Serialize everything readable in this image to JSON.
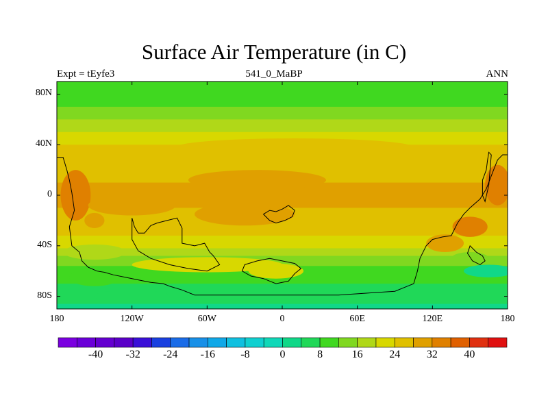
{
  "title": "Surface Air Temperature (in C)",
  "left_label": "Expt = tEyfe3",
  "center_label": "541_0_MaBP",
  "right_label": "ANN",
  "chart_data": {
    "type": "heatmap",
    "variable": "Surface Air Temperature",
    "units": "C",
    "projection": "cylindrical equidistant",
    "x_range_deg": [
      -180,
      180
    ],
    "y_range_deg": [
      -90,
      90
    ],
    "lat_ticks": [
      {
        "lat": 80,
        "label": "80N"
      },
      {
        "lat": 40,
        "label": "40N"
      },
      {
        "lat": 0,
        "label": "0"
      },
      {
        "lat": -40,
        "label": "40S"
      },
      {
        "lat": -80,
        "label": "80S"
      }
    ],
    "lon_ticks": [
      {
        "lon": -180,
        "label": "180"
      },
      {
        "lon": -120,
        "label": "120W"
      },
      {
        "lon": -60,
        "label": "60W"
      },
      {
        "lon": 0,
        "label": "0"
      },
      {
        "lon": 60,
        "label": "60E"
      },
      {
        "lon": 120,
        "label": "120E"
      },
      {
        "lon": 180,
        "label": "180"
      }
    ],
    "zonal_profile": {
      "lat": [
        90,
        80,
        70,
        60,
        50,
        40,
        30,
        20,
        10,
        0,
        -10,
        -20,
        -30,
        -40,
        -50,
        -60,
        -70,
        -80,
        -90
      ],
      "temp_c": [
        8,
        9,
        12,
        16,
        20,
        24,
        26,
        27,
        28,
        28,
        28,
        27,
        25,
        21,
        15,
        10,
        8,
        5,
        3
      ]
    },
    "colorbar": {
      "levels": [
        -44,
        -40,
        -36,
        -32,
        -28,
        -24,
        -20,
        -16,
        -12,
        -8,
        -4,
        0,
        4,
        8,
        12,
        16,
        20,
        24,
        28,
        32,
        36,
        40,
        44
      ],
      "colors": [
        "#7a00e0",
        "#6a00d8",
        "#6400d0",
        "#5a00c8",
        "#3a10d8",
        "#1a40e0",
        "#1a6ce8",
        "#1890e8",
        "#10a8e8",
        "#10c0e0",
        "#10d0d0",
        "#10d8b8",
        "#10d888",
        "#20d858",
        "#40d820",
        "#80d820",
        "#b0d818",
        "#d8d800",
        "#e0c000",
        "#e0a000",
        "#e08000",
        "#e06000",
        "#e03010",
        "#e01010"
      ],
      "tick_labels": [
        "-40",
        "-32",
        "-24",
        "-16",
        "-8",
        "0",
        "8",
        "16",
        "24",
        "32",
        "40"
      ]
    },
    "continents": [
      {
        "name": "western-continent",
        "outline": [
          [
            -180,
            30
          ],
          [
            -175,
            30
          ],
          [
            -172,
            20
          ],
          [
            -170,
            12
          ],
          [
            -168,
            2
          ],
          [
            -166,
            -12
          ],
          [
            -170,
            -25
          ],
          [
            -168,
            -40
          ],
          [
            -162,
            -45
          ],
          [
            -160,
            -52
          ],
          [
            -155,
            -57
          ],
          [
            -148,
            -60
          ],
          [
            -142,
            -61
          ],
          [
            -135,
            -63
          ],
          [
            -125,
            -65
          ],
          [
            -115,
            -67
          ],
          [
            -105,
            -69
          ],
          [
            -95,
            -70
          ],
          [
            -90,
            -72
          ],
          [
            -80,
            -75
          ],
          [
            -70,
            -79
          ],
          [
            -60,
            -79
          ],
          [
            -45,
            -79
          ],
          [
            -30,
            -79
          ],
          [
            -15,
            -79
          ],
          [
            0,
            -79
          ],
          [
            15,
            -79
          ],
          [
            30,
            -79
          ],
          [
            45,
            -79
          ],
          [
            60,
            -78
          ],
          [
            75,
            -77
          ],
          [
            90,
            -76
          ],
          [
            100,
            -72
          ],
          [
            105,
            -70
          ],
          [
            108,
            -60
          ],
          [
            110,
            -50
          ],
          [
            115,
            -40
          ],
          [
            120,
            -35
          ],
          [
            128,
            -33
          ],
          [
            135,
            -32
          ],
          [
            140,
            -22
          ],
          [
            145,
            -15
          ],
          [
            150,
            -10
          ],
          [
            158,
            -3
          ],
          [
            163,
            5
          ],
          [
            168,
            18
          ],
          [
            172,
            28
          ],
          [
            176,
            32
          ],
          [
            180,
            32
          ],
          [
            180,
            -90
          ],
          [
            -180,
            -90
          ]
        ]
      },
      {
        "name": "eastern-island-1",
        "outline": [
          [
            150,
            -40
          ],
          [
            155,
            -45
          ],
          [
            160,
            -48
          ],
          [
            162,
            -52
          ],
          [
            158,
            -55
          ],
          [
            152,
            -52
          ],
          [
            148,
            -46
          ]
        ]
      },
      {
        "name": "eastern-strip",
        "outline": [
          [
            160,
            12
          ],
          [
            163,
            20
          ],
          [
            164,
            28
          ],
          [
            165,
            34
          ],
          [
            167,
            32
          ],
          [
            166,
            20
          ],
          [
            165,
            8
          ],
          [
            162,
            -5
          ],
          [
            160,
            0
          ]
        ]
      },
      {
        "name": "north-hump",
        "outline": [
          [
            -120,
            -18
          ],
          [
            -118,
            -25
          ],
          [
            -115,
            -30
          ],
          [
            -110,
            -30
          ],
          [
            -105,
            -24
          ],
          [
            -100,
            -22
          ],
          [
            -92,
            -20
          ],
          [
            -84,
            -18
          ],
          [
            -80,
            -26
          ],
          [
            -80,
            -38
          ],
          [
            -70,
            -40
          ],
          [
            -62,
            -38
          ],
          [
            -58,
            -45
          ],
          [
            -55,
            -48
          ],
          [
            -50,
            -55
          ],
          [
            -60,
            -60
          ],
          [
            -75,
            -58
          ],
          [
            -90,
            -55
          ],
          [
            -105,
            -50
          ],
          [
            -115,
            -44
          ],
          [
            -120,
            -35
          ]
        ]
      },
      {
        "name": "central-island",
        "outline": [
          [
            -15,
            -15
          ],
          [
            -10,
            -12
          ],
          [
            -5,
            -13
          ],
          [
            0,
            -11
          ],
          [
            5,
            -8
          ],
          [
            10,
            -12
          ],
          [
            8,
            -17
          ],
          [
            2,
            -20
          ],
          [
            -5,
            -22
          ],
          [
            -10,
            -20
          ]
        ]
      },
      {
        "name": "southern-island",
        "outline": [
          [
            -30,
            -55
          ],
          [
            -20,
            -52
          ],
          [
            -10,
            -50
          ],
          [
            0,
            -52
          ],
          [
            10,
            -54
          ],
          [
            15,
            -58
          ],
          [
            10,
            -62
          ],
          [
            5,
            -68
          ],
          [
            -5,
            -70
          ],
          [
            -15,
            -66
          ],
          [
            -25,
            -64
          ],
          [
            -32,
            -60
          ]
        ]
      }
    ],
    "notes": []
  }
}
